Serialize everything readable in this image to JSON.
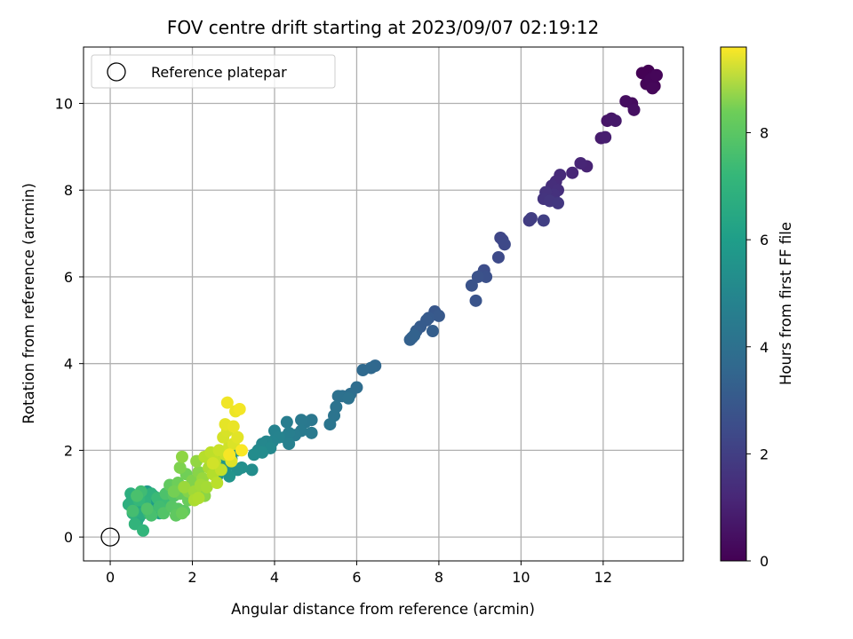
{
  "chart_data": {
    "type": "scatter",
    "title": "FOV centre drift starting at 2023/09/07 02:19:12",
    "xlabel": "Angular distance from reference (arcmin)",
    "ylabel": "Rotation from reference (arcmin)",
    "xlim": [
      -0.65,
      13.95
    ],
    "ylim": [
      -0.55,
      11.3
    ],
    "xticks": [
      0,
      2,
      4,
      6,
      8,
      10,
      12
    ],
    "yticks": [
      0,
      2,
      4,
      6,
      8,
      10
    ],
    "grid": true,
    "legend": {
      "position": "top-left",
      "entries": [
        "Reference platepar"
      ]
    },
    "reference_point": {
      "x": 0,
      "y": 0,
      "label": "Reference platepar"
    },
    "colorbar": {
      "label": "Hours from first FF file",
      "colormap": "viridis",
      "range": [
        0,
        9.6
      ],
      "ticks": [
        0,
        2,
        4,
        6,
        8
      ]
    },
    "points": [
      [
        13.1,
        10.75,
        0.02
      ],
      [
        12.95,
        10.7,
        0.04
      ],
      [
        13.2,
        10.6,
        0.06
      ],
      [
        13.05,
        10.45,
        0.08
      ],
      [
        13.25,
        10.4,
        0.1
      ],
      [
        13.15,
        10.55,
        0.12
      ],
      [
        13.3,
        10.65,
        0.14
      ],
      [
        13.2,
        10.35,
        0.16
      ],
      [
        12.7,
        10.0,
        0.3
      ],
      [
        12.55,
        10.05,
        0.35
      ],
      [
        12.75,
        9.85,
        0.4
      ],
      [
        12.1,
        9.6,
        0.55
      ],
      [
        12.2,
        9.65,
        0.6
      ],
      [
        12.3,
        9.6,
        0.65
      ],
      [
        11.95,
        9.2,
        0.75
      ],
      [
        12.05,
        9.22,
        0.8
      ],
      [
        11.6,
        8.55,
        0.95
      ],
      [
        11.45,
        8.62,
        1.0
      ],
      [
        11.25,
        8.4,
        1.05
      ],
      [
        10.95,
        8.35,
        1.15
      ],
      [
        10.85,
        8.2,
        1.2
      ],
      [
        10.75,
        8.1,
        1.25
      ],
      [
        10.9,
        8.0,
        1.3
      ],
      [
        10.8,
        7.9,
        1.35
      ],
      [
        10.6,
        7.95,
        1.4
      ],
      [
        10.55,
        7.8,
        1.45
      ],
      [
        10.7,
        7.75,
        1.5
      ],
      [
        10.9,
        7.7,
        1.55
      ],
      [
        10.2,
        7.3,
        1.7
      ],
      [
        10.25,
        7.35,
        1.75
      ],
      [
        10.55,
        7.3,
        1.8
      ],
      [
        9.5,
        6.9,
        2.0
      ],
      [
        9.55,
        6.85,
        2.05
      ],
      [
        9.6,
        6.75,
        2.1
      ],
      [
        9.45,
        6.45,
        2.15
      ],
      [
        9.1,
        6.15,
        2.25
      ],
      [
        9.05,
        6.05,
        2.3
      ],
      [
        9.15,
        6.0,
        2.35
      ],
      [
        8.95,
        6.0,
        2.4
      ],
      [
        8.8,
        5.8,
        2.45
      ],
      [
        8.9,
        5.45,
        2.5
      ],
      [
        7.9,
        5.2,
        2.6
      ],
      [
        8.0,
        5.1,
        2.65
      ],
      [
        7.75,
        5.05,
        2.7
      ],
      [
        7.7,
        5.0,
        2.72
      ],
      [
        7.55,
        4.85,
        2.75
      ],
      [
        7.45,
        4.75,
        2.8
      ],
      [
        7.85,
        4.75,
        2.85
      ],
      [
        7.35,
        4.6,
        2.9
      ],
      [
        7.3,
        4.55,
        2.95
      ],
      [
        7.4,
        4.65,
        3.0
      ],
      [
        6.45,
        3.95,
        3.2
      ],
      [
        6.35,
        3.9,
        3.25
      ],
      [
        6.15,
        3.85,
        3.3
      ],
      [
        6.0,
        3.45,
        3.4
      ],
      [
        5.85,
        3.3,
        3.45
      ],
      [
        5.65,
        3.25,
        3.5
      ],
      [
        5.55,
        3.25,
        3.55
      ],
      [
        5.8,
        3.2,
        3.6
      ],
      [
        5.5,
        3.0,
        3.65
      ],
      [
        5.45,
        2.8,
        3.7
      ],
      [
        5.35,
        2.6,
        3.75
      ],
      [
        4.9,
        2.7,
        3.8
      ],
      [
        4.75,
        2.65,
        3.85
      ],
      [
        4.65,
        2.7,
        3.9
      ],
      [
        4.9,
        2.4,
        3.92
      ],
      [
        4.65,
        2.45,
        3.95
      ],
      [
        4.5,
        2.35,
        4.0
      ],
      [
        4.3,
        2.65,
        4.05
      ],
      [
        4.35,
        2.4,
        4.1
      ],
      [
        4.25,
        2.3,
        4.15
      ],
      [
        4.35,
        2.15,
        4.2
      ],
      [
        4.0,
        2.45,
        4.25
      ],
      [
        4.1,
        2.3,
        4.3
      ],
      [
        3.95,
        2.2,
        4.35
      ],
      [
        3.8,
        2.2,
        4.4
      ],
      [
        3.7,
        2.15,
        4.45
      ],
      [
        3.9,
        2.05,
        4.5
      ],
      [
        3.6,
        2.0,
        4.55
      ],
      [
        3.7,
        1.95,
        4.6
      ],
      [
        3.5,
        1.9,
        4.65
      ],
      [
        3.45,
        1.55,
        4.7
      ],
      [
        3.2,
        1.6,
        4.75
      ],
      [
        3.1,
        1.55,
        4.8
      ],
      [
        2.95,
        1.8,
        4.85
      ],
      [
        2.85,
        1.65,
        4.9
      ],
      [
        2.9,
        1.4,
        4.95
      ],
      [
        3.1,
        2.0,
        5.0
      ],
      [
        2.6,
        1.4,
        5.05
      ],
      [
        2.7,
        1.75,
        5.1
      ],
      [
        1.05,
        0.95,
        5.15
      ],
      [
        0.9,
        1.05,
        5.2
      ],
      [
        0.95,
        0.75,
        5.3
      ],
      [
        1.25,
        0.8,
        5.35
      ],
      [
        1.2,
        0.55,
        5.4
      ],
      [
        0.75,
        0.9,
        5.45
      ],
      [
        0.5,
        0.8,
        5.55
      ],
      [
        0.55,
        0.95,
        5.6
      ],
      [
        0.6,
        0.65,
        5.65
      ],
      [
        0.7,
        0.45,
        5.7
      ],
      [
        0.75,
        0.7,
        5.75
      ],
      [
        1.1,
        0.6,
        5.8
      ],
      [
        0.65,
        0.35,
        5.85
      ],
      [
        1.3,
        0.7,
        5.9
      ],
      [
        0.8,
        0.55,
        5.95
      ],
      [
        0.5,
        1.0,
        6.0
      ],
      [
        0.45,
        0.75,
        6.05
      ],
      [
        0.55,
        0.55,
        6.1
      ],
      [
        1.0,
        1.0,
        6.15
      ],
      [
        0.85,
        0.8,
        6.2
      ],
      [
        0.6,
        0.3,
        6.25
      ],
      [
        0.8,
        0.15,
        6.3
      ],
      [
        0.7,
        0.85,
        6.4
      ],
      [
        0.95,
        0.55,
        6.45
      ],
      [
        1.15,
        0.9,
        6.5
      ],
      [
        1.4,
        0.8,
        6.55
      ],
      [
        0.75,
        1.05,
        6.6
      ],
      [
        1.2,
        0.7,
        6.65
      ],
      [
        0.55,
        0.6,
        6.7
      ],
      [
        1.0,
        0.5,
        6.75
      ],
      [
        0.65,
        0.95,
        6.8
      ],
      [
        1.35,
        1.0,
        6.85
      ],
      [
        0.9,
        0.65,
        6.9
      ],
      [
        1.3,
        0.55,
        6.95
      ],
      [
        1.55,
        0.95,
        7.0
      ],
      [
        1.5,
        0.7,
        7.05
      ],
      [
        1.65,
        0.65,
        7.1
      ],
      [
        1.8,
        0.6,
        7.15
      ],
      [
        1.6,
        0.5,
        7.2
      ],
      [
        1.45,
        1.2,
        7.25
      ],
      [
        1.7,
        1.0,
        7.3
      ],
      [
        1.9,
        0.85,
        7.35
      ],
      [
        1.75,
        0.55,
        7.4
      ],
      [
        1.65,
        1.25,
        7.45
      ],
      [
        1.85,
        1.45,
        7.5
      ],
      [
        1.55,
        1.05,
        7.55
      ],
      [
        1.95,
        1.1,
        7.6
      ],
      [
        2.05,
        0.9,
        7.65
      ],
      [
        1.7,
        1.6,
        7.7
      ],
      [
        2.0,
        1.3,
        7.75
      ],
      [
        1.9,
        1.05,
        7.8
      ],
      [
        2.15,
        1.5,
        7.85
      ],
      [
        2.3,
        0.95,
        7.9
      ],
      [
        1.75,
        1.85,
        7.95
      ],
      [
        2.1,
        1.75,
        8.0
      ],
      [
        2.25,
        1.35,
        8.1
      ],
      [
        1.8,
        1.15,
        8.15
      ],
      [
        2.05,
        1.05,
        8.2
      ],
      [
        2.2,
        1.2,
        8.25
      ],
      [
        2.35,
        1.15,
        8.3
      ],
      [
        2.4,
        1.6,
        8.35
      ],
      [
        2.05,
        0.85,
        8.4
      ],
      [
        2.15,
        0.9,
        8.45
      ],
      [
        2.5,
        1.45,
        8.5
      ],
      [
        2.3,
        1.85,
        8.55
      ],
      [
        2.6,
        1.25,
        8.6
      ],
      [
        2.45,
        1.95,
        8.65
      ],
      [
        2.55,
        1.75,
        8.7
      ],
      [
        2.7,
        1.55,
        8.75
      ],
      [
        2.8,
        1.9,
        8.8
      ],
      [
        2.65,
        2.0,
        8.85
      ],
      [
        2.9,
        2.1,
        8.9
      ],
      [
        2.5,
        1.7,
        8.95
      ],
      [
        2.75,
        2.3,
        9.0
      ],
      [
        2.85,
        2.45,
        9.05
      ],
      [
        3.0,
        2.15,
        9.1
      ],
      [
        2.95,
        1.75,
        9.15
      ],
      [
        3.1,
        2.3,
        9.2
      ],
      [
        2.8,
        2.6,
        9.25
      ],
      [
        3.0,
        2.55,
        9.3
      ],
      [
        3.05,
        2.9,
        9.35
      ],
      [
        2.85,
        3.1,
        9.4
      ],
      [
        3.15,
        2.95,
        9.45
      ],
      [
        2.9,
        1.9,
        9.5
      ],
      [
        3.2,
        2.0,
        9.55
      ]
    ]
  }
}
